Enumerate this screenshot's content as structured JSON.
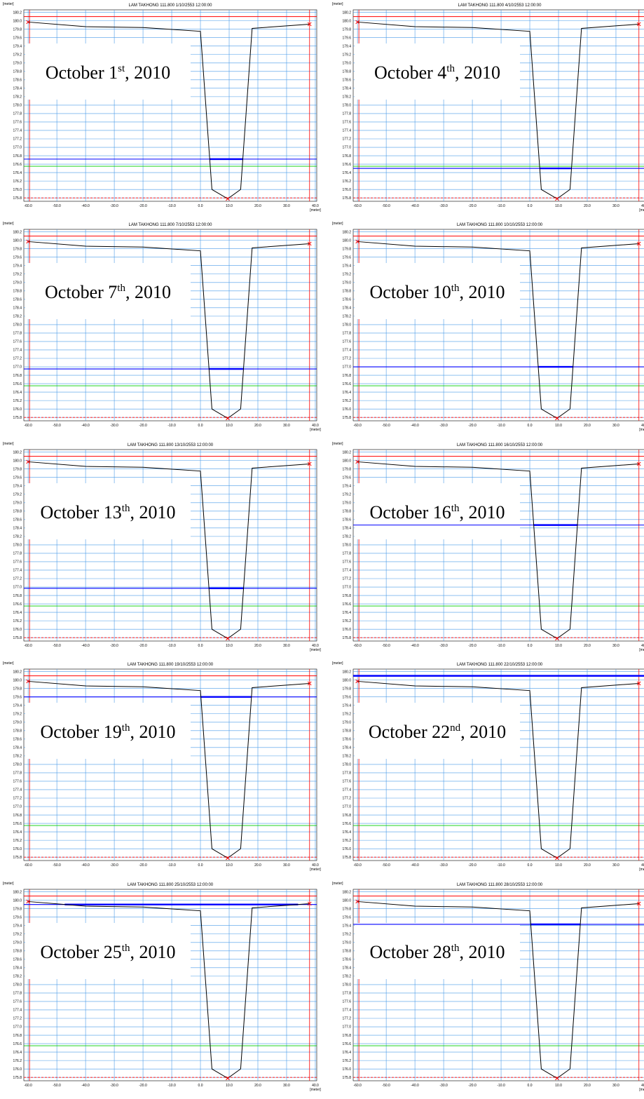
{
  "axes": {
    "y_label": "[meter]",
    "x_label": "[meter]",
    "xlim": [
      -61.5,
      40.5
    ],
    "ylim": [
      175.72,
      180.26
    ],
    "xticks": [
      {
        "value": -60,
        "label": "-60.0"
      },
      {
        "value": -50,
        "label": "-50.0"
      },
      {
        "value": -40,
        "label": "-40.0"
      },
      {
        "value": -30,
        "label": "-30.0"
      },
      {
        "value": -20,
        "label": "-20.0"
      },
      {
        "value": -10,
        "label": "-10.0"
      },
      {
        "value": 0,
        "label": "0.0"
      },
      {
        "value": 10,
        "label": "10.0"
      },
      {
        "value": 20,
        "label": "20.0"
      },
      {
        "value": 30,
        "label": "30.0"
      },
      {
        "value": 40,
        "label": "40.0"
      }
    ],
    "yticks": [
      175.8,
      176,
      176.2,
      176.4,
      176.6,
      176.8,
      177,
      177.2,
      177.4,
      177.6,
      177.8,
      178,
      178.2,
      178.4,
      178.6,
      178.8,
      179,
      179.2,
      179.4,
      179.6,
      179.8,
      180,
      180.2
    ],
    "ytick_labels": [
      "175.8",
      "176.0",
      "176.2",
      "176.4",
      "176.6",
      "176.8",
      "177.0",
      "177.2",
      "177.4",
      "177.6",
      "177.8",
      "178.0",
      "178.2",
      "178.4",
      "178.6",
      "178.8",
      "179.0",
      "179.2",
      "179.4",
      "179.6",
      "179.8",
      "180.0",
      "180.2"
    ],
    "grid": true,
    "grid_color": "#4a9be8",
    "profile": {
      "color": "#000000",
      "x": [
        -60,
        -40,
        -20,
        0,
        4,
        9.5,
        14,
        18,
        38
      ],
      "values": [
        179.97,
        179.86,
        179.84,
        179.75,
        176.0,
        175.78,
        176.0,
        179.82,
        179.92
      ]
    },
    "marker_color": "#ff0000",
    "reference_levels": [
      {
        "value": 180.1,
        "color": "#ff0000"
      },
      {
        "value": 176.55,
        "color": "#00cc00"
      },
      {
        "value": 175.8,
        "color": "#ff0000",
        "dashed": true
      }
    ],
    "water_color": "#0000ff"
  },
  "chart_data": [
    {
      "type": "line",
      "title": "LAM TAKHONG  111.800  1/10/2553 12:00:00",
      "annotation": [
        "October 1",
        "st",
        ", 2010"
      ],
      "water_level": 176.72
    },
    {
      "type": "line",
      "title": "LAM TAKHONG  111.800  4/10/2553 12:00:00",
      "annotation": [
        "October 4",
        "th",
        ", 2010"
      ],
      "water_level": 176.5
    },
    {
      "type": "line",
      "title": "LAM TAKHONG  111.800  7/10/2553 12:00:00",
      "annotation": [
        "October 7",
        "th",
        ", 2010"
      ],
      "water_level": 176.95
    },
    {
      "type": "line",
      "title": "LAM TAKHONG  111.800  10/10/2553 12:00:00",
      "annotation": [
        "October 10",
        "th",
        ", 2010"
      ],
      "water_level": 177.0
    },
    {
      "type": "line",
      "title": "LAM TAKHONG  111.800  13/10/2553 12:00:00",
      "annotation": [
        "October 13",
        "th",
        ", 2010"
      ],
      "water_level": 176.97
    },
    {
      "type": "line",
      "title": "LAM TAKHONG  111.800  16/10/2553 12:00:00",
      "annotation": [
        "October 16",
        "th",
        ", 2010"
      ],
      "water_level": 178.47
    },
    {
      "type": "line",
      "title": "LAM TAKHONG  111.800  19/10/2553 12:00:00",
      "annotation": [
        "October 19",
        "th",
        ", 2010"
      ],
      "water_level": 179.6
    },
    {
      "type": "line",
      "title": "LAM TAKHONG  111.800  22/10/2553 12:00:00",
      "annotation": [
        "October 22",
        "nd",
        ", 2010"
      ],
      "water_level": 180.1
    },
    {
      "type": "line",
      "title": "LAM TAKHONG  111.800  25/10/2553 12:00:00",
      "annotation": [
        "October 25",
        "th",
        ", 2010"
      ],
      "water_level": 179.9
    },
    {
      "type": "line",
      "title": "LAM TAKHONG  111.800  28/10/2553 12:00:00",
      "annotation": [
        "October 28",
        "th",
        ", 2010"
      ],
      "water_level": 179.43
    }
  ]
}
